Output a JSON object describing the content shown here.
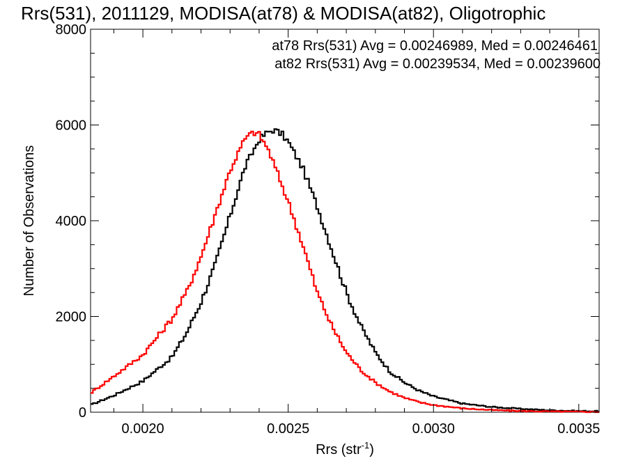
{
  "chart_data": {
    "type": "line",
    "title": "Rrs(531), 2011129, MODISA(at78) & MODISA(at82), Oligotrophic",
    "xlabel": "Rrs (str",
    "xlabel_sup": "-1",
    "xlabel_close": ")",
    "ylabel": "Number of Observations",
    "xlim": [
      0.00182,
      0.00357
    ],
    "ylim": [
      0,
      8000
    ],
    "xticks": [
      {
        "value": 0.002,
        "label": "0.0020"
      },
      {
        "value": 0.0025,
        "label": "0.0025"
      },
      {
        "value": 0.003,
        "label": "0.0030"
      },
      {
        "value": 0.0035,
        "label": "0.0035"
      }
    ],
    "yticks": [
      {
        "value": 0,
        "label": "0"
      },
      {
        "value": 2000,
        "label": "2000"
      },
      {
        "value": 4000,
        "label": "4000"
      },
      {
        "value": 6000,
        "label": "6000"
      },
      {
        "value": 8000,
        "label": "8000"
      }
    ],
    "grid": false,
    "legend_position": "top-right",
    "annotations": [
      {
        "text": "at78 Rrs(531) Avg = 0.00246989, Med = 0.00246461",
        "color": "#000000"
      },
      {
        "text": "at82 Rrs(531) Avg = 0.00239534, Med = 0.00239600",
        "color": "#ff0000"
      }
    ],
    "series": [
      {
        "color": "#000000",
        "style": "step",
        "x": [
          0.00182,
          0.0019,
          0.002,
          0.0021,
          0.00215,
          0.0022,
          0.00225,
          0.0023,
          0.00235,
          0.0024,
          0.00243,
          0.00245,
          0.00248,
          0.0025,
          0.00255,
          0.0026,
          0.00265,
          0.0027,
          0.00275,
          0.0028,
          0.00285,
          0.0029,
          0.00295,
          0.003,
          0.0031,
          0.0032,
          0.0033,
          0.0034,
          0.0035,
          0.00357
        ],
        "y": [
          150,
          350,
          650,
          1150,
          1650,
          2300,
          3100,
          4100,
          5100,
          5700,
          5850,
          5900,
          5800,
          5650,
          5100,
          4300,
          3400,
          2500,
          1800,
          1250,
          850,
          620,
          450,
          330,
          180,
          110,
          70,
          40,
          25,
          20
        ]
      },
      {
        "color": "#ff0000",
        "style": "step",
        "x": [
          0.00182,
          0.0019,
          0.002,
          0.0021,
          0.00215,
          0.0022,
          0.00225,
          0.0023,
          0.00235,
          0.00238,
          0.0024,
          0.00243,
          0.00245,
          0.0025,
          0.00255,
          0.0026,
          0.00265,
          0.0027,
          0.00275,
          0.0028,
          0.00285,
          0.0029,
          0.00295,
          0.003,
          0.0031,
          0.0032,
          0.0033,
          0.0034,
          0.0035,
          0.00357
        ],
        "y": [
          400,
          750,
          1200,
          1950,
          2500,
          3250,
          4150,
          5050,
          5700,
          5850,
          5800,
          5500,
          5200,
          4400,
          3500,
          2500,
          1800,
          1250,
          880,
          620,
          430,
          300,
          210,
          150,
          80,
          45,
          25,
          15,
          10,
          5
        ]
      }
    ]
  }
}
